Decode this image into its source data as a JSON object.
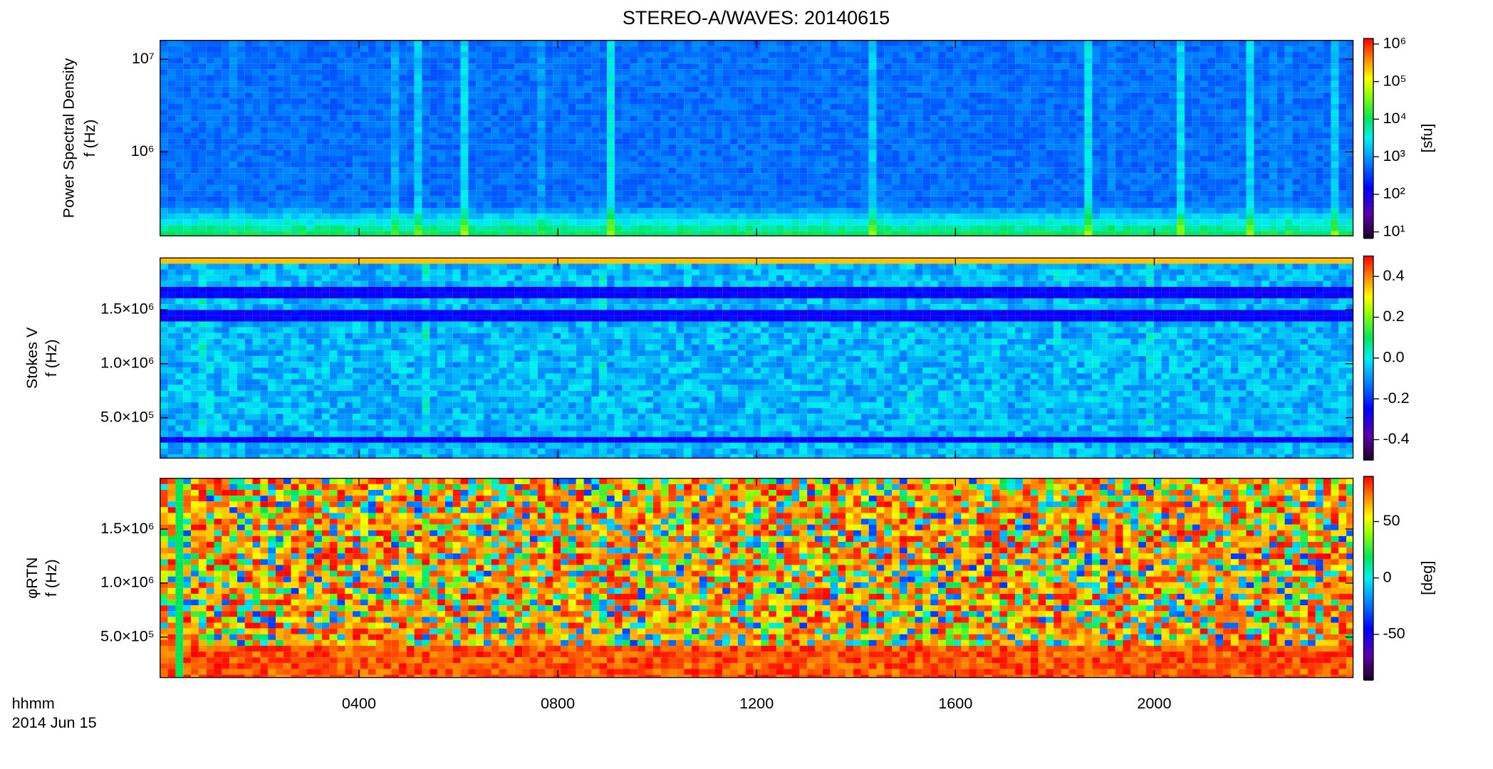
{
  "chart_data": [
    {
      "type": "heatmap",
      "title": "STEREO-A/WAVES: 20140615",
      "ylabel": [
        "Power Spectral Density",
        "f (Hz)"
      ],
      "ylog": true,
      "ylim": [
        124000,
        16000000
      ],
      "yticks": [
        {
          "value": 1000000,
          "label": "10⁶"
        },
        {
          "value": 10000000,
          "label": "10⁷"
        }
      ],
      "colormap": "rainbow",
      "clog": true,
      "clim": [
        7,
        1400000
      ],
      "cticks": [
        {
          "value": 10,
          "label": "10¹"
        },
        {
          "value": 100,
          "label": "10²"
        },
        {
          "value": 1000,
          "label": "10³"
        },
        {
          "value": 10000,
          "label": "10⁴"
        },
        {
          "value": 100000,
          "label": "10⁵"
        },
        {
          "value": 1000000,
          "label": "10⁶"
        }
      ],
      "clabel": "[sfu]"
    },
    {
      "type": "heatmap",
      "ylabel": [
        "Stokes V",
        "f (Hz)"
      ],
      "ylim": [
        125000,
        1980000
      ],
      "yticks": [
        {
          "value": 500000,
          "label": "5.0×10⁵"
        },
        {
          "value": 1000000,
          "label": "1.0×10⁶"
        },
        {
          "value": 1500000,
          "label": "1.5×10⁶"
        }
      ],
      "colormap": "rainbow",
      "clim": [
        -0.5,
        0.5
      ],
      "cticks": [
        -0.4,
        -0.2,
        {
          "value": 0,
          "label": "0.0"
        },
        0.2,
        0.4
      ]
    },
    {
      "type": "heatmap",
      "ylabel": [
        "φRTN",
        "f (Hz)"
      ],
      "ylim": [
        125000,
        1970000
      ],
      "yticks": [
        {
          "value": 500000,
          "label": "5.0×10⁵"
        },
        {
          "value": 1000000,
          "label": "1.0×10⁶"
        },
        {
          "value": 1500000,
          "label": "1.5×10⁶"
        }
      ],
      "colormap": "rainbow",
      "clim": [
        -90,
        90
      ],
      "cticks": [
        -50,
        0,
        50
      ],
      "clabel": "[deg]",
      "xlim": [
        0,
        24
      ],
      "xticks": [
        {
          "value": 4,
          "label": "0400"
        },
        {
          "value": 8,
          "label": "0800"
        },
        {
          "value": 12,
          "label": "1200"
        },
        {
          "value": 16,
          "label": "1600"
        },
        {
          "value": 20,
          "label": "2000"
        }
      ],
      "xlabel": "hhmm",
      "date": "2014 Jun 15"
    }
  ]
}
